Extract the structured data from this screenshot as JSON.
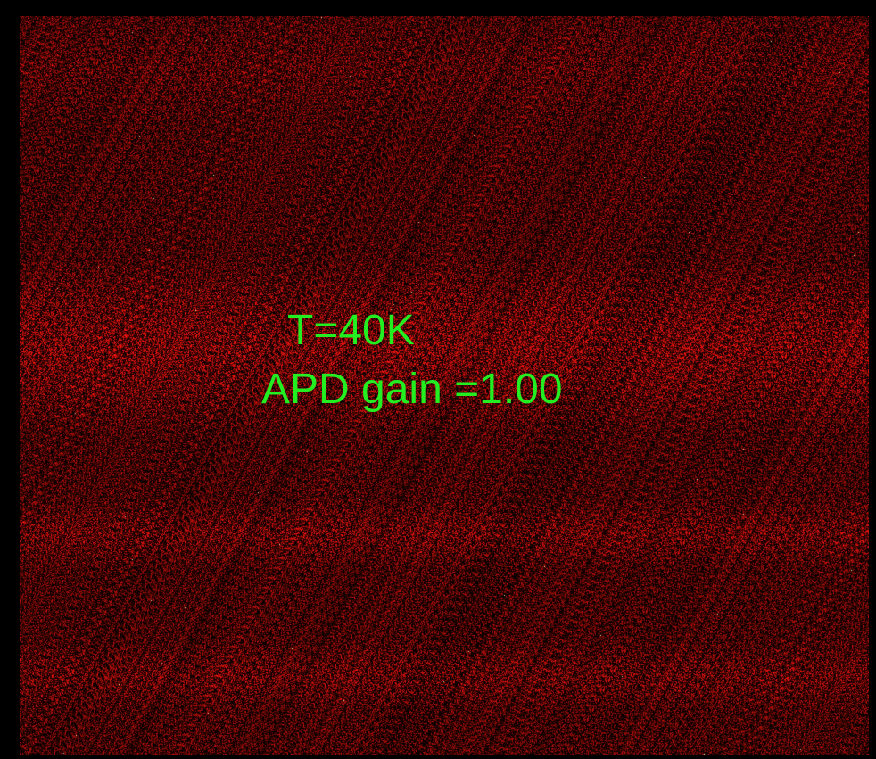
{
  "image": {
    "labels": {
      "temperature": "T=40K",
      "gain": "APD gain =1.00"
    },
    "colors": {
      "label_text": "#22ee22",
      "background": "#000000",
      "signal": "#cc1111"
    }
  }
}
